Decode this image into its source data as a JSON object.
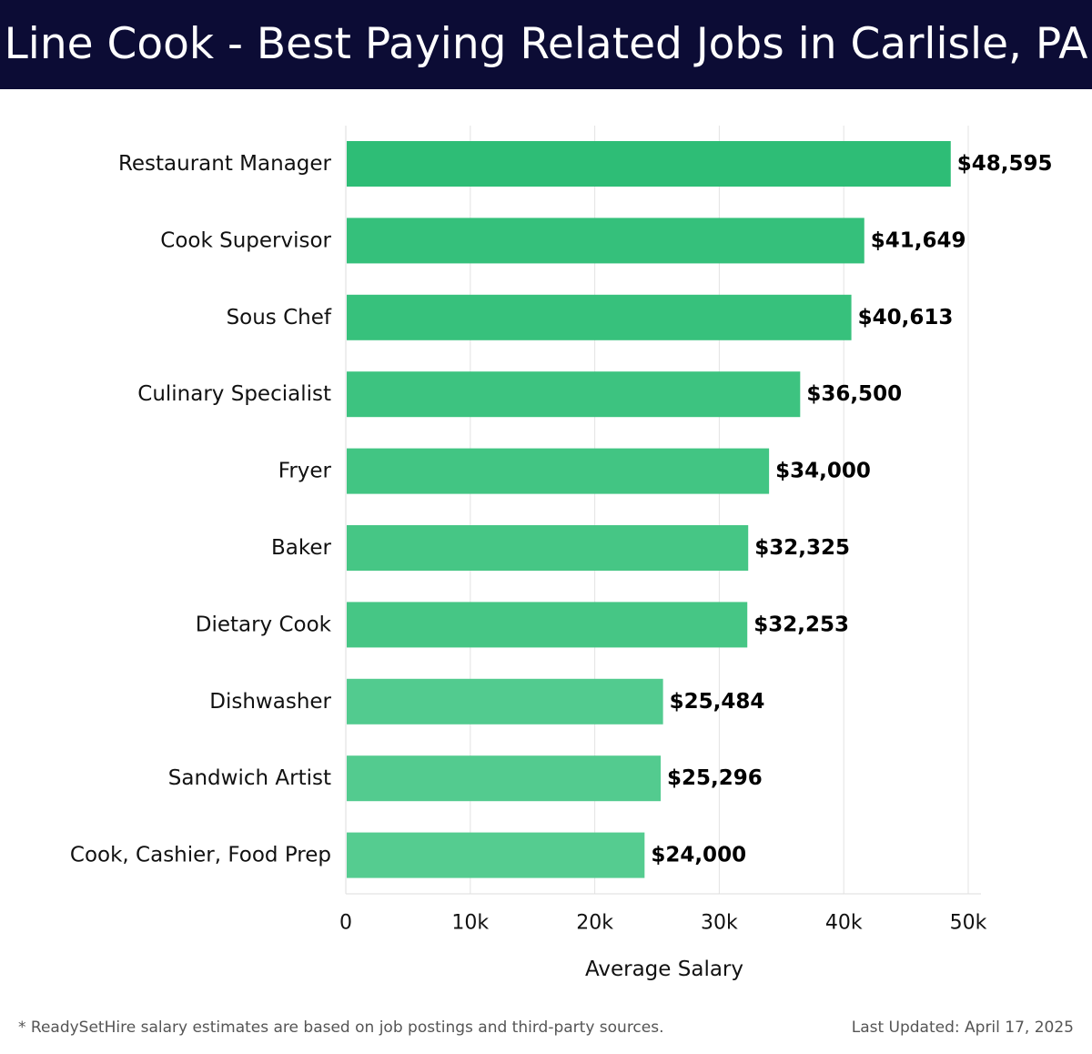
{
  "header": {
    "title": "Line Cook - Best Paying Related Jobs in Carlisle, PA"
  },
  "chart_data": {
    "type": "bar",
    "orientation": "horizontal",
    "title": "Line Cook - Best Paying Related Jobs in Carlisle, PA",
    "xlabel": "Average Salary",
    "ylabel": "",
    "xlim": [
      0,
      50000
    ],
    "x_ticks": [
      0,
      10000,
      20000,
      30000,
      40000,
      50000
    ],
    "x_tick_labels": [
      "0",
      "10k",
      "20k",
      "30k",
      "40k",
      "50k"
    ],
    "grid": true,
    "categories": [
      "Restaurant Manager",
      "Cook Supervisor",
      "Sous Chef",
      "Culinary Specialist",
      "Fryer",
      "Baker",
      "Dietary Cook",
      "Dishwasher",
      "Sandwich Artist",
      "Cook, Cashier, Food Prep"
    ],
    "values": [
      48595,
      41649,
      40613,
      36500,
      34000,
      32325,
      32253,
      25484,
      25296,
      24000
    ],
    "value_labels": [
      "$48,595",
      "$41,649",
      "$40,613",
      "$36,500",
      "$34,000",
      "$32,325",
      "$32,253",
      "$25,484",
      "$25,296",
      "$24,000"
    ],
    "bar_colors": [
      "#2ebd76",
      "#35c07b",
      "#37c17c",
      "#3dc380",
      "#42c583",
      "#46c685",
      "#46c685",
      "#52cb8f",
      "#53cb8f",
      "#55cc90"
    ]
  },
  "footer": {
    "note": "* ReadySetHire salary estimates are based on job postings and third-party sources.",
    "updated": "Last Updated: April 17, 2025"
  }
}
